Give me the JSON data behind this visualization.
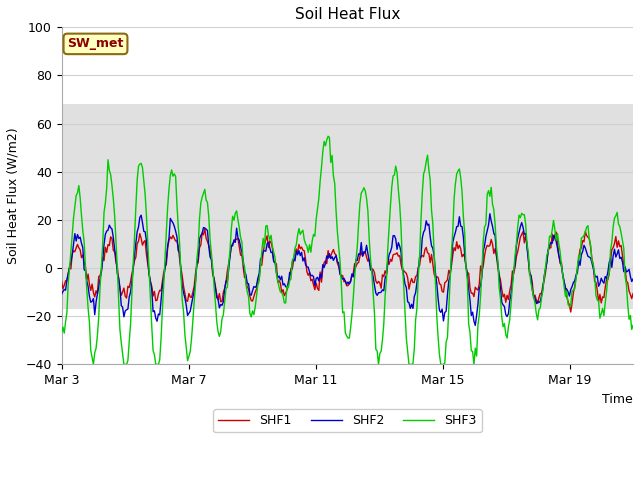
{
  "title": "Soil Heat Flux",
  "xlabel": "Time",
  "ylabel": "Soil Heat Flux (W/m2)",
  "ylim": [
    -40,
    100
  ],
  "yticks": [
    -40,
    -20,
    0,
    20,
    40,
    60,
    80,
    100
  ],
  "shaded_band_lo": -17,
  "shaded_band_hi": 68,
  "legend_labels": [
    "SHF1",
    "SHF2",
    "SHF3"
  ],
  "legend_colors": [
    "#cc0000",
    "#0000cc",
    "#00cc00"
  ],
  "xtick_positions": [
    0,
    4,
    8,
    12,
    16
  ],
  "xtick_labels": [
    "Mar 3",
    "Mar 7",
    "Mar 11",
    "Mar 15",
    "Mar 19"
  ],
  "site_label": "SW_met",
  "plot_bg": "#ffffff",
  "fig_bg": "#ffffff",
  "shaded_color": "#e0e0e0",
  "grid_color": "#d0d0d0",
  "n_points": 432,
  "xlim": [
    0,
    18
  ]
}
